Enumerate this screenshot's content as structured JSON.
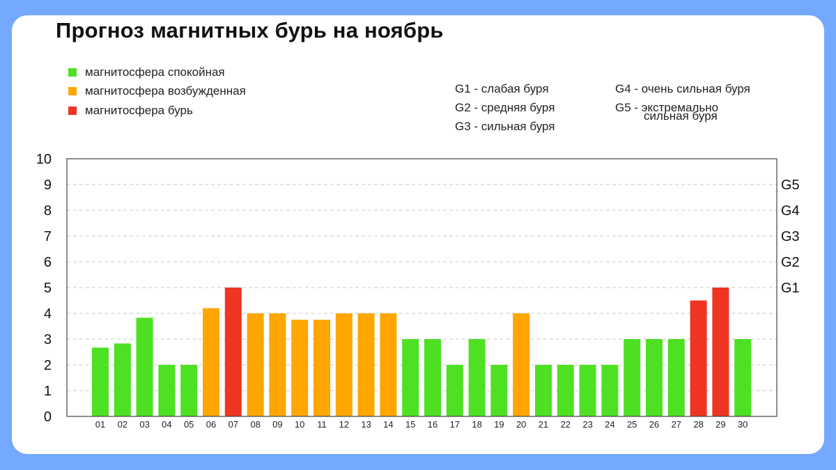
{
  "title": "Прогноз магнитных бурь на ноябрь",
  "legend": [
    {
      "label": "магнитосфера спокойная",
      "color": "#4ee023"
    },
    {
      "label": "магнитосфера возбужденная",
      "color": "#ffa600"
    },
    {
      "label": "магнитосфера бурь",
      "color": "#ee3524"
    }
  ],
  "g_levels_legend": {
    "col1": [
      "G1 - слабая буря",
      "G2 - средняя буря",
      "G3 - сильная буря"
    ],
    "col2_line1": "G4 - очень сильная буря",
    "col2_line2": "G5 - экстремально",
    "col2_line3": "сильная буря"
  },
  "chart_data": {
    "type": "bar",
    "categories": [
      "01",
      "02",
      "03",
      "04",
      "05",
      "06",
      "07",
      "08",
      "09",
      "10",
      "11",
      "12",
      "13",
      "14",
      "15",
      "16",
      "17",
      "18",
      "19",
      "20",
      "21",
      "22",
      "23",
      "24",
      "25",
      "26",
      "27",
      "28",
      "29",
      "30"
    ],
    "values": [
      2.67,
      2.83,
      3.83,
      2,
      2,
      4.2,
      5,
      4,
      4,
      3.75,
      3.75,
      4,
      4,
      4,
      3,
      3,
      2,
      3,
      2,
      4,
      2,
      2,
      2,
      2,
      3,
      3,
      3,
      4.5,
      5,
      3
    ],
    "levels": [
      "calm",
      "calm",
      "calm",
      "calm",
      "calm",
      "excited",
      "storm",
      "excited",
      "excited",
      "excited",
      "excited",
      "excited",
      "excited",
      "excited",
      "calm",
      "calm",
      "calm",
      "calm",
      "calm",
      "excited",
      "calm",
      "calm",
      "calm",
      "calm",
      "calm",
      "calm",
      "calm",
      "storm",
      "storm",
      "calm"
    ],
    "level_colors": {
      "calm": "#4ee023",
      "excited": "#ffa600",
      "storm": "#ee3524"
    },
    "ylim": [
      0,
      10
    ],
    "yticks": [
      0,
      1,
      2,
      3,
      4,
      5,
      6,
      7,
      8,
      9,
      10
    ],
    "right_axis_labels": [
      {
        "label": "G1",
        "value": 5
      },
      {
        "label": "G2",
        "value": 6
      },
      {
        "label": "G3",
        "value": 7
      },
      {
        "label": "G4",
        "value": 8
      },
      {
        "label": "G5",
        "value": 9
      }
    ],
    "grid": true,
    "legend_position": "top-left"
  }
}
